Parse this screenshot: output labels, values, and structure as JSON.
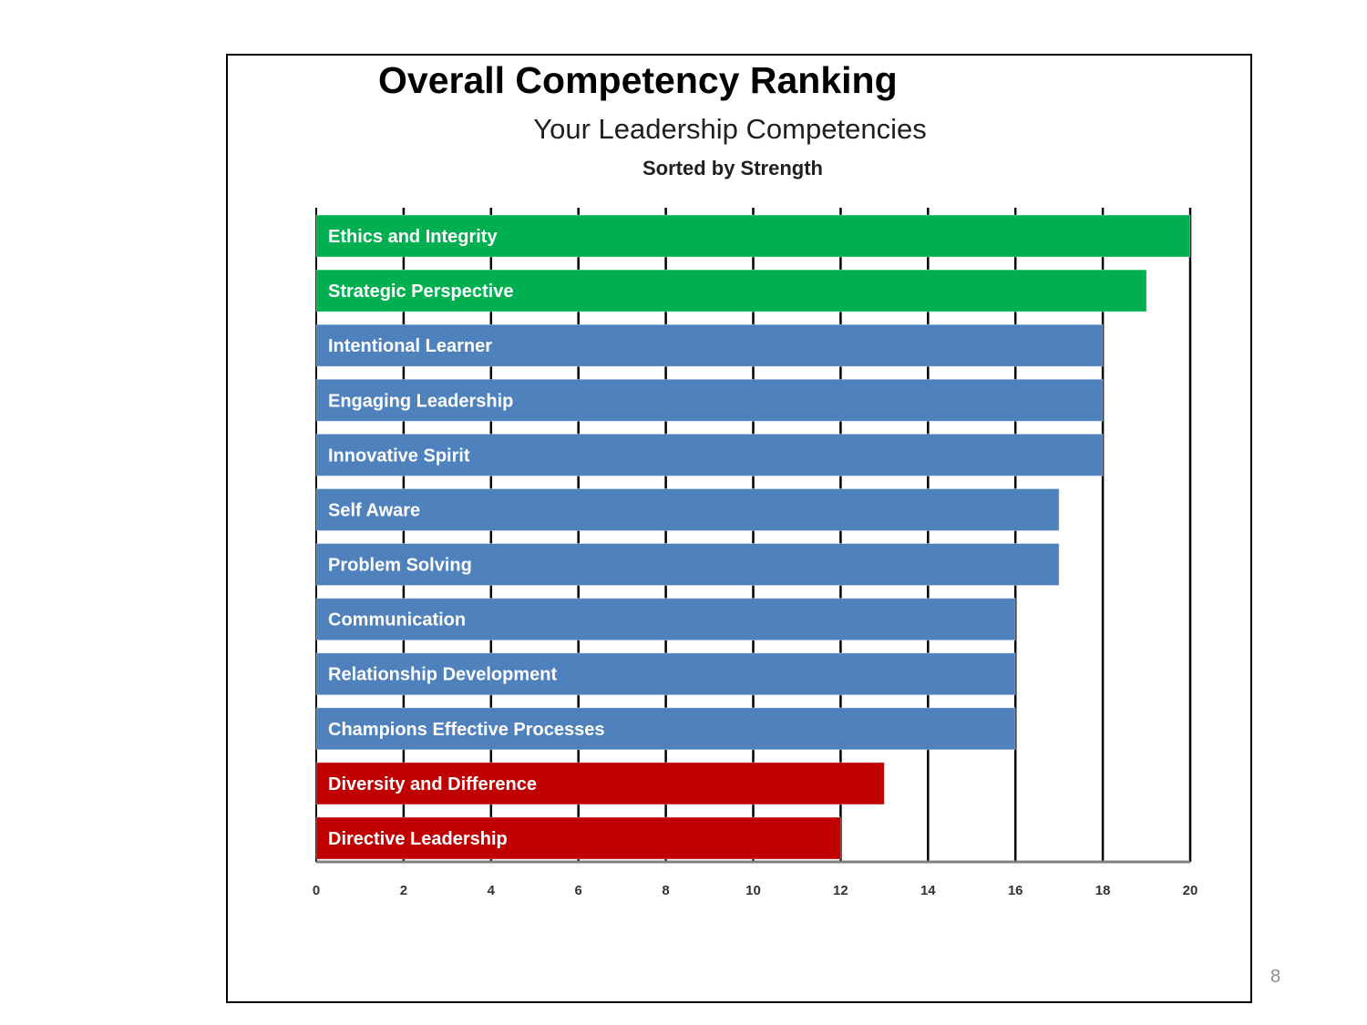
{
  "slide": {
    "title": "Overall Competency Ranking",
    "page_number": "8"
  },
  "chart_data": {
    "type": "bar",
    "orientation": "horizontal",
    "title": "Your Leadership Competencies",
    "subtitle": "Sorted by Strength",
    "xlabel": "",
    "ylabel": "",
    "xlim": [
      0,
      20
    ],
    "x_ticks": [
      0,
      2,
      4,
      6,
      8,
      10,
      12,
      14,
      16,
      18,
      20
    ],
    "grid": "vertical gridlines on",
    "legend": "none",
    "labels_inside_bars": true,
    "categories": [
      "Ethics and Integrity",
      "Strategic Perspective",
      "Intentional Learner",
      "Engaging Leadership",
      "Innovative Spirit",
      "Self Aware",
      "Problem Solving",
      "Communication",
      "Relationship Development",
      "Champions Effective Processes",
      "Diversity and Difference",
      "Directive Leadership"
    ],
    "values": [
      20,
      19,
      18,
      18,
      18,
      17,
      17,
      16,
      16,
      16,
      13,
      12
    ],
    "bar_colors": [
      "#00b050",
      "#00b050",
      "#4f81bd",
      "#4f81bd",
      "#4f81bd",
      "#4f81bd",
      "#4f81bd",
      "#4f81bd",
      "#4f81bd",
      "#4f81bd",
      "#c00000",
      "#c00000"
    ]
  }
}
